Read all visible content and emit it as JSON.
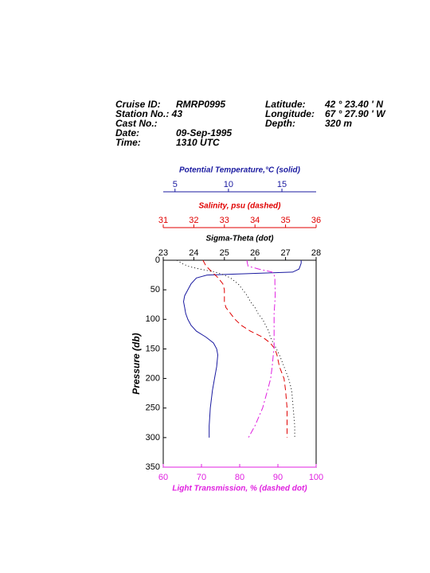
{
  "header": {
    "left": [
      [
        "Cruise ID:",
        "RMRP0995"
      ],
      [
        "Station No.: 43",
        ""
      ],
      [
        "Cast No.:",
        ""
      ],
      [
        "Date:",
        "09-Sep-1995"
      ],
      [
        "Time:",
        "1310 UTC"
      ]
    ],
    "right": [
      [
        "Latitude:",
        "42 ° 23.40 ' N"
      ],
      [
        "Longitude:",
        "67 ° 27.90 ' W"
      ],
      [
        "Depth:",
        "320 m"
      ]
    ]
  },
  "chart_data": {
    "type": "line",
    "y_label": "Pressure (db)",
    "ylim": [
      0,
      350
    ],
    "y_inverted": true,
    "yticks": [
      0,
      50,
      100,
      150,
      200,
      250,
      300,
      350
    ],
    "y": [
      0,
      5,
      10,
      15,
      20,
      25,
      30,
      40,
      50,
      60,
      70,
      80,
      90,
      100,
      110,
      120,
      130,
      140,
      150,
      160,
      180,
      200,
      220,
      250,
      280,
      300
    ],
    "x_axes": [
      {
        "label": "Potential Temperature,°C (solid)",
        "xlim": [
          3.9,
          18.2
        ],
        "xticks": [
          5,
          10,
          15
        ],
        "color": "#1a1aa0",
        "position": "top"
      },
      {
        "label": "Salinity, psu  (dashed)",
        "xlim": [
          31,
          36
        ],
        "xticks": [
          31,
          32,
          33,
          34,
          35,
          36
        ],
        "color": "#e00000",
        "position": "top"
      },
      {
        "label": "Sigma-Theta (dot)",
        "xlim": [
          23,
          28
        ],
        "xticks": [
          23,
          24,
          25,
          26,
          27,
          28
        ],
        "color": "#000000",
        "position": "top"
      },
      {
        "label": "Light Transmission, % (dashed dot)",
        "xlim": [
          60,
          100
        ],
        "xticks": [
          60,
          70,
          80,
          90,
          100
        ],
        "color": "#e020e0",
        "position": "bottom"
      }
    ],
    "series": [
      {
        "axis": 0,
        "color": "#1a1aa0",
        "style": "solid",
        "values": [
          16.8,
          16.8,
          16.7,
          16.6,
          16.0,
          8.0,
          7.0,
          6.5,
          6.2,
          5.9,
          5.8,
          5.9,
          6.0,
          6.2,
          6.5,
          7.0,
          7.9,
          8.6,
          8.9,
          9.0,
          8.9,
          8.7,
          8.5,
          8.3,
          8.2,
          8.2
        ]
      },
      {
        "axis": 1,
        "color": "#e00000",
        "style": "dashed",
        "values": [
          32.3,
          32.35,
          32.4,
          32.5,
          32.6,
          32.7,
          32.8,
          32.95,
          33.0,
          33.0,
          33.0,
          33.05,
          33.2,
          33.35,
          33.55,
          33.85,
          34.25,
          34.5,
          34.65,
          34.72,
          34.8,
          34.95,
          35.0,
          35.05,
          35.05,
          35.05
        ]
      },
      {
        "axis": 2,
        "color": "#000000",
        "style": "dotted",
        "values": [
          23.45,
          23.6,
          23.8,
          24.2,
          24.7,
          25.0,
          25.2,
          25.45,
          25.6,
          25.75,
          25.85,
          26.0,
          26.1,
          26.25,
          26.35,
          26.45,
          26.5,
          26.6,
          26.7,
          26.8,
          26.95,
          27.1,
          27.2,
          27.25,
          27.3,
          27.3
        ]
      },
      {
        "axis": 3,
        "color": "#e020e0",
        "style": "dashdot",
        "values": [
          81.9,
          82.0,
          82.2,
          85.0,
          88.5,
          89.0,
          89.2,
          89.2,
          89.3,
          89.3,
          89.2,
          89.1,
          89.0,
          89.0,
          89.0,
          89.0,
          89.0,
          89.0,
          89.0,
          88.8,
          88.5,
          88.1,
          87.3,
          86.0,
          84.0,
          82.3
        ]
      }
    ]
  }
}
